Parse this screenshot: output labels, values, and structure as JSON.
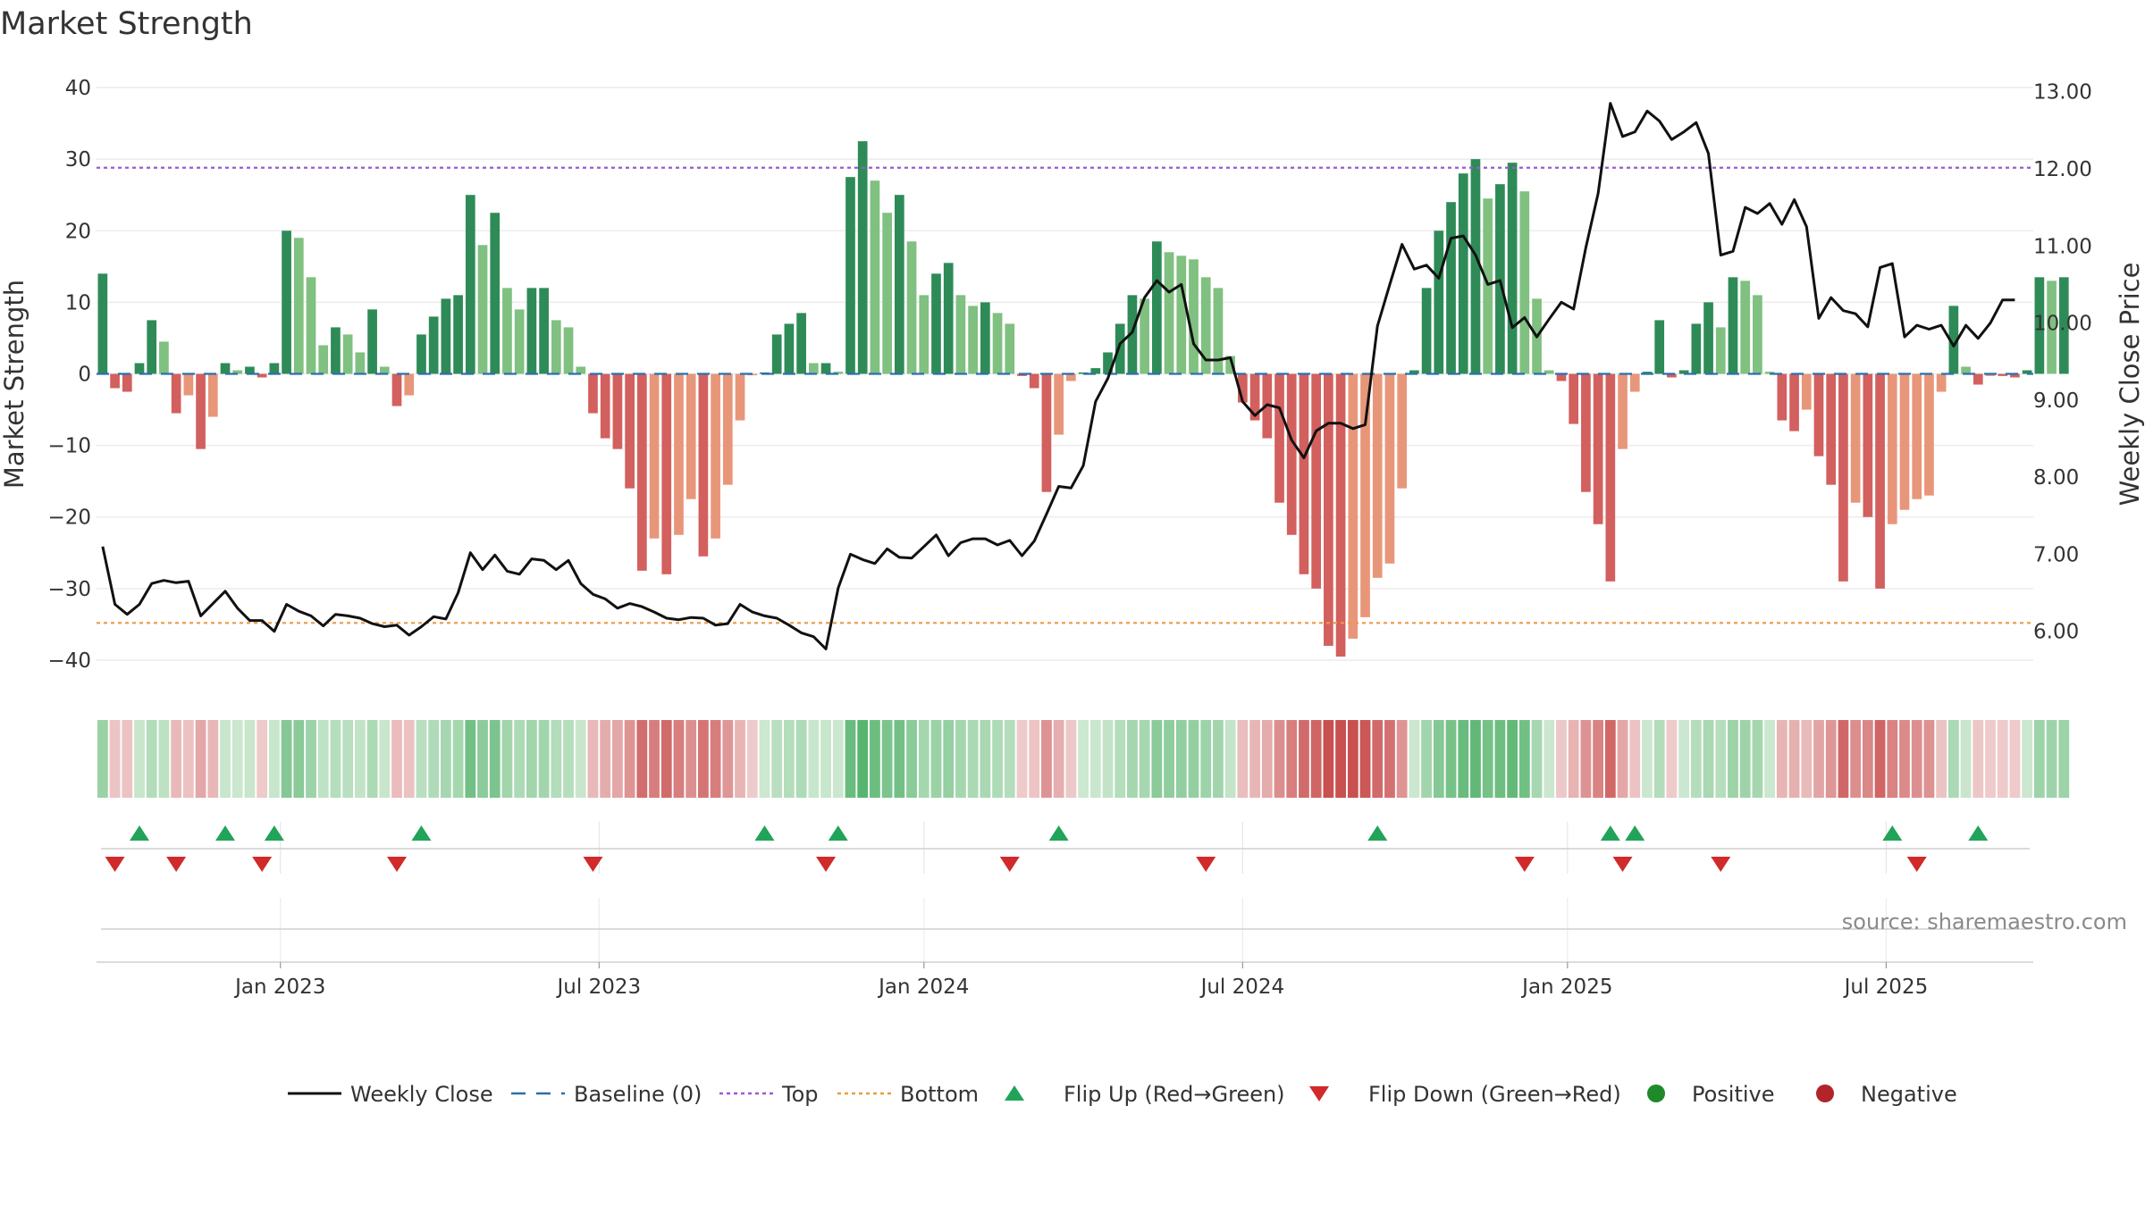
{
  "chart_data": {
    "type": "bar",
    "title": "Market Strength",
    "ylabel_left": "Market Strength",
    "ylabel_right": "Weekly Close Price",
    "source": "source: sharemaestro.com",
    "y_left_range": [
      -42,
      42
    ],
    "y_left_ticks": [
      40,
      30,
      20,
      10,
      0,
      -10,
      -20,
      -30,
      -40
    ],
    "y_left_tick_labels": [
      "40",
      "30",
      "20",
      "10",
      "0",
      "−10",
      "−20",
      "−30",
      "−40"
    ],
    "y_right_range": [
      5.44,
      13.24
    ],
    "y_right_ticks": [
      13,
      12,
      11,
      10,
      9,
      8,
      7,
      6
    ],
    "y_right_tick_labels": [
      "13.00",
      "12.00",
      "11.00",
      "10.00",
      "9.00",
      "8.00",
      "7.00",
      "6.00"
    ],
    "top_line": 28.8,
    "bottom_line": -34.8,
    "x_week_range": [
      0,
      158
    ],
    "x_ticks": [
      {
        "label": "Jan 2023",
        "week": 15
      },
      {
        "label": "Jul 2023",
        "week": 41
      },
      {
        "label": "Jan 2024",
        "week": 67.5
      },
      {
        "label": "Jul 2024",
        "week": 93.5
      },
      {
        "label": "Jan 2025",
        "week": 120
      },
      {
        "label": "Jul 2025",
        "week": 146
      }
    ],
    "strength": [
      14.0,
      -2.0,
      -2.5,
      1.5,
      7.5,
      4.5,
      -5.5,
      -3.0,
      -10.5,
      -6.0,
      1.5,
      0.5,
      1.0,
      -0.5,
      1.5,
      20.0,
      19.0,
      13.5,
      4.0,
      6.5,
      5.5,
      3.0,
      9.0,
      1.0,
      -4.5,
      -3.0,
      5.5,
      8.0,
      10.5,
      11.0,
      25.0,
      18.0,
      22.5,
      12.0,
      9.0,
      12.0,
      12.0,
      7.5,
      6.5,
      1.0,
      -5.5,
      -9.0,
      -10.5,
      -16.0,
      -27.5,
      -23.0,
      -28.0,
      -22.5,
      -17.5,
      -25.5,
      -23.0,
      -15.5,
      -6.5,
      -0.2,
      0.2,
      5.5,
      7.0,
      8.5,
      1.5,
      1.5,
      0.3,
      27.5,
      32.5,
      27.0,
      22.5,
      25.0,
      18.5,
      11.0,
      14.0,
      15.5,
      11.0,
      9.5,
      10.0,
      8.5,
      7.0,
      -0.3,
      -2.0,
      -16.5,
      -8.5,
      -1.0,
      0.2,
      0.8,
      3.0,
      7.0,
      11.0,
      10.5,
      18.5,
      17.0,
      16.5,
      16.0,
      13.5,
      12.0,
      2.5,
      -4.0,
      -6.5,
      -9.0,
      -18.0,
      -22.5,
      -28.0,
      -30.0,
      -38.0,
      -39.5,
      -37.0,
      -34.0,
      -28.5,
      -26.5,
      -16.0,
      0.5,
      12.0,
      20.0,
      24.0,
      28.0,
      30.0,
      24.5,
      26.5,
      29.5,
      25.5,
      10.5,
      0.5,
      -1.0,
      -7.0,
      -16.5,
      -21.0,
      -29.0,
      -10.5,
      -2.5,
      0.3,
      7.5,
      -0.5,
      0.5,
      7.0,
      10.0,
      6.5,
      13.5,
      13.0,
      11.0,
      0.3,
      -6.5,
      -8.0,
      -5.0,
      -11.5,
      -15.5,
      -29.0,
      -18.0,
      -20.0,
      -30.0,
      -21.0,
      -19.0,
      -17.5,
      -17.0,
      -2.5,
      9.5,
      1.0,
      -1.5,
      -0.3,
      -0.3,
      -0.5,
      0.5,
      13.5,
      13.0,
      13.5
    ],
    "weekly_close": [
      7.1,
      6.35,
      6.22,
      6.35,
      6.62,
      6.66,
      6.63,
      6.65,
      6.2,
      6.36,
      6.52,
      6.3,
      6.14,
      6.14,
      6.0,
      6.35,
      6.26,
      6.2,
      6.07,
      6.22,
      6.2,
      6.17,
      6.1,
      6.06,
      6.08,
      5.95,
      6.06,
      6.19,
      6.16,
      6.5,
      7.02,
      6.8,
      6.99,
      6.78,
      6.74,
      6.94,
      6.92,
      6.8,
      6.92,
      6.62,
      6.48,
      6.42,
      6.3,
      6.36,
      6.32,
      6.25,
      6.17,
      6.15,
      6.18,
      6.17,
      6.08,
      6.1,
      6.35,
      6.25,
      6.2,
      6.17,
      6.08,
      5.98,
      5.93,
      5.77,
      6.56,
      7.0,
      6.93,
      6.88,
      7.07,
      6.96,
      6.95,
      7.1,
      7.25,
      6.98,
      7.15,
      7.2,
      7.2,
      7.12,
      7.18,
      6.98,
      7.17,
      7.52,
      7.88,
      7.86,
      8.15,
      8.98,
      9.28,
      9.73,
      9.88,
      10.33,
      10.55,
      10.4,
      10.5,
      9.73,
      9.52,
      9.52,
      9.55,
      8.98,
      8.8,
      8.94,
      8.9,
      8.48,
      8.25,
      8.6,
      8.7,
      8.7,
      8.63,
      8.68,
      9.96,
      10.5,
      11.02,
      10.7,
      10.75,
      10.58,
      11.1,
      11.13,
      10.88,
      10.5,
      10.55,
      9.94,
      10.07,
      9.82,
      10.05,
      10.27,
      10.18,
      10.98,
      11.68,
      12.85,
      12.42,
      12.48,
      12.75,
      12.62,
      12.38,
      12.48,
      12.6,
      12.2,
      10.88,
      10.93,
      11.5,
      11.42,
      11.55,
      11.28,
      11.6,
      11.25,
      10.06,
      10.33,
      10.16,
      10.12,
      9.95,
      10.72,
      10.77,
      9.82,
      9.97,
      9.92,
      9.97,
      9.7,
      9.97,
      9.8,
      10.0,
      10.3,
      10.3
    ],
    "flip_up_weeks": [
      3,
      10,
      14,
      26,
      54,
      60,
      78,
      104,
      123,
      125,
      146,
      153
    ],
    "flip_down_weeks": [
      1,
      6,
      13,
      24,
      40,
      59,
      74,
      90,
      116,
      124,
      132,
      148
    ],
    "colors": {
      "strong_green": "#2e8b57",
      "light_green": "#80c080",
      "strong_red": "#d2605e",
      "light_red": "#e8967a",
      "close_line": "#111111",
      "baseline": "#2a6fb0",
      "top": "#9b59d0",
      "bottom": "#ee9944",
      "flip_up": "#21a35a",
      "flip_down": "#d12a2a",
      "positive": "#1f8a2a",
      "negative": "#b1242a"
    },
    "legend": [
      {
        "label": "Weekly Close",
        "kind": "solid-line"
      },
      {
        "label": "Baseline (0)",
        "kind": "dash-line"
      },
      {
        "label": "Top",
        "kind": "dot-line-top"
      },
      {
        "label": "Bottom",
        "kind": "dot-line-bottom"
      },
      {
        "label": "Flip Up (Red→Green)",
        "kind": "triangle-up"
      },
      {
        "label": "Flip Down (Green→Red)",
        "kind": "triangle-down"
      },
      {
        "label": "Positive",
        "kind": "dot-positive"
      },
      {
        "label": "Negative",
        "kind": "dot-negative"
      }
    ]
  }
}
